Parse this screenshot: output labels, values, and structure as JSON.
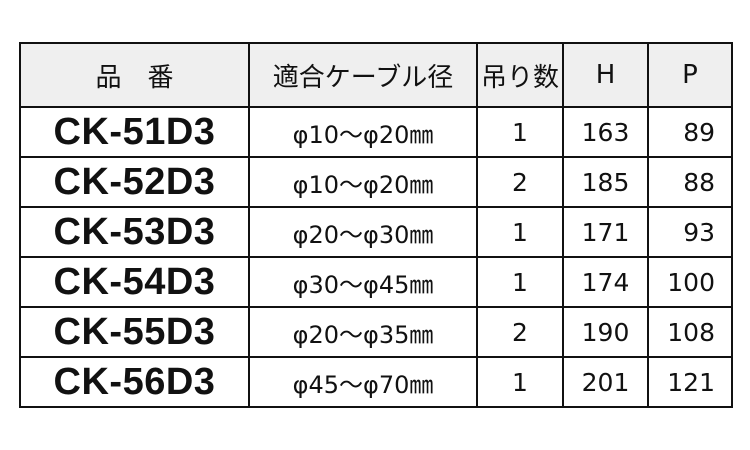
{
  "headers": [
    "品　番",
    "適合ケーブル径",
    "吊り数",
    "H",
    "P"
  ],
  "rows": [
    {
      "code": "CK-51D3",
      "range": "φ10～φ20㎜",
      "hangers": "1",
      "H": "163",
      "P": "89"
    },
    {
      "code": "CK-52D3",
      "range": "φ10～φ20㎜",
      "hangers": "2",
      "H": "185",
      "P": "88"
    },
    {
      "code": "CK-53D3",
      "range": "φ20～φ30㎜",
      "hangers": "1",
      "H": "171",
      "P": "93"
    },
    {
      "code": "CK-54D3",
      "range": "φ30～φ45㎜",
      "hangers": "1",
      "H": "174",
      "P": "100"
    },
    {
      "code": "CK-55D3",
      "range": "φ20～φ35㎜",
      "hangers": "2",
      "H": "190",
      "P": "108"
    },
    {
      "code": "CK-56D3",
      "range": "φ45～φ70㎜",
      "hangers": "1",
      "H": "201",
      "P": "121"
    }
  ],
  "colors": {
    "header_bg": "#efefef",
    "border": "#111111"
  }
}
